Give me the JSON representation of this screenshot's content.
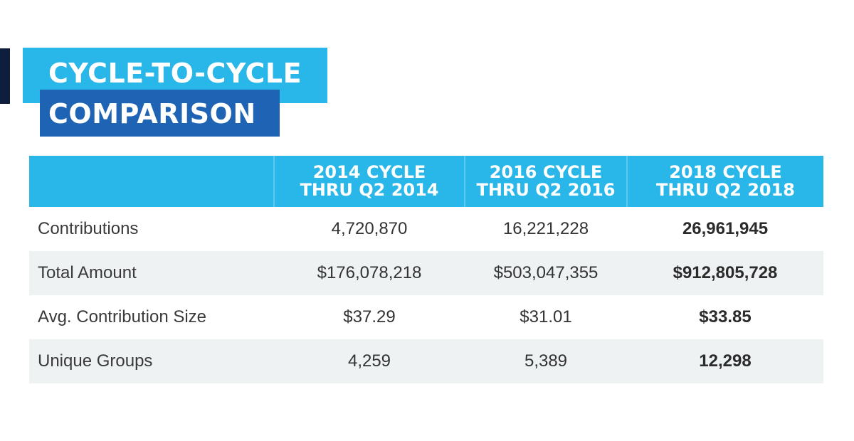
{
  "title": {
    "line1": "CYCLE-TO-CYCLE",
    "line2": "COMPARISON"
  },
  "chart_data": {
    "type": "table",
    "columns": [
      "",
      "2014 CYCLE\nTHRU Q2 2014",
      "2016 CYCLE\nTHRU Q2 2016",
      "2018 CYCLE\nTHRU Q2 2018"
    ],
    "rows": [
      {
        "label": "Contributions",
        "values": [
          "4,720,870",
          "16,221,228",
          "26,961,945"
        ]
      },
      {
        "label": "Total Amount",
        "values": [
          "$176,078,218",
          "$503,047,355",
          "$912,805,728"
        ]
      },
      {
        "label": "Avg. Contribution Size",
        "values": [
          "$37.29",
          "$31.01",
          "$33.85"
        ]
      },
      {
        "label": "Unique Groups",
        "values": [
          "4,259",
          "5,389",
          "12,298"
        ]
      }
    ],
    "highlight_column": 3
  },
  "colors": {
    "header_bg": "#29b6e8",
    "title_dark": "#1e63b4",
    "accent_bar": "#0f1e3c",
    "row_alt": "#eef2f3"
  }
}
